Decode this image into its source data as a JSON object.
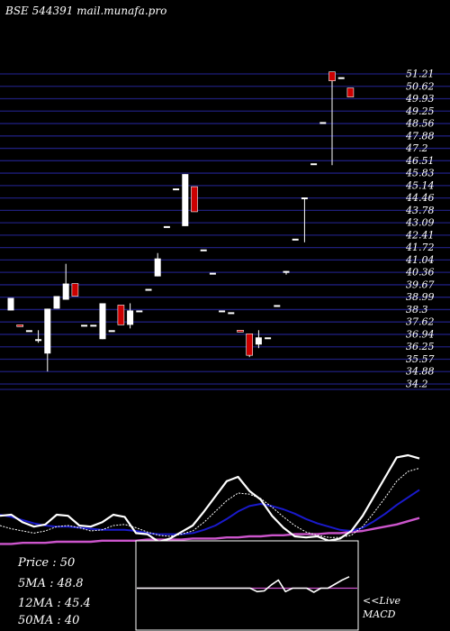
{
  "title": "BSE 544391 mail.munafa.pro",
  "colors": {
    "background": "#000000",
    "grid": "#1e1e7a",
    "up_candle": "#ffffff",
    "down_candle": "#cc0000",
    "price_line": "#ffffff",
    "ma_fast": "#ffffff",
    "ma_mid": "#1a1acc",
    "ma_slow": "#cc55cc",
    "macd_line": "#ffffff",
    "macd_signal": "#cc55cc"
  },
  "stats": {
    "price": "Price   : 50",
    "ma5": "5MA : 48.8",
    "ma12": "12MA : 45.4",
    "ma50": "50MA : 40"
  },
  "macd_labels": {
    "live": "<<Live",
    "macd": "MACD"
  },
  "chart_data": {
    "type": "candlestick",
    "title": "BSE 544391 mail.munafa.pro",
    "y_ticks": [
      "51.21",
      "50.62",
      "49.93",
      "49.25",
      "48.56",
      "47.88",
      "47.2",
      "46.51",
      "45.83",
      "45.14",
      "44.46",
      "43.78",
      "43.09",
      "42.41",
      "41.72",
      "41.04",
      "40.36",
      "39.67",
      "38.99",
      "38.3",
      "37.62",
      "36.94",
      "36.25",
      "35.57",
      "34.88",
      "34.2"
    ],
    "ylim": [
      33.3,
      53.9
    ],
    "candles": [
      {
        "o": 37.6,
        "h": 38.3,
        "l": 37.6,
        "c": 38.3
      },
      {
        "o": 36.8,
        "h": 36.8,
        "l": 36.7,
        "c": 36.7
      },
      {
        "o": 36.5,
        "h": 36.5,
        "l": 36.5,
        "c": 36.5
      },
      {
        "o": 36.0,
        "h": 36.5,
        "l": 35.8,
        "c": 36.0
      },
      {
        "o": 35.2,
        "h": 37.7,
        "l": 34.2,
        "c": 37.7
      },
      {
        "o": 37.7,
        "h": 38.4,
        "l": 37.7,
        "c": 38.4
      },
      {
        "o": 38.2,
        "h": 40.2,
        "l": 38.2,
        "c": 39.1
      },
      {
        "o": 39.1,
        "h": 39.1,
        "l": 38.4,
        "c": 38.4
      },
      {
        "o": 36.8,
        "h": 36.8,
        "l": 36.8,
        "c": 36.8
      },
      {
        "o": 36.8,
        "h": 36.8,
        "l": 36.8,
        "c": 36.8
      },
      {
        "o": 36.0,
        "h": 38.0,
        "l": 36.0,
        "c": 38.0
      },
      {
        "o": 36.5,
        "h": 36.5,
        "l": 36.5,
        "c": 36.5
      },
      {
        "o": 37.9,
        "h": 37.9,
        "l": 36.8,
        "c": 36.8
      },
      {
        "o": 36.8,
        "h": 38.0,
        "l": 36.6,
        "c": 37.6
      },
      {
        "o": 37.6,
        "h": 37.6,
        "l": 37.6,
        "c": 37.6
      },
      {
        "o": 38.8,
        "h": 38.8,
        "l": 38.8,
        "c": 38.8
      },
      {
        "o": 39.5,
        "h": 40.8,
        "l": 39.5,
        "c": 40.5
      },
      {
        "o": 42.3,
        "h": 42.3,
        "l": 42.3,
        "c": 42.3
      },
      {
        "o": 44.4,
        "h": 44.4,
        "l": 44.4,
        "c": 44.4
      },
      {
        "o": 42.3,
        "h": 45.2,
        "l": 42.3,
        "c": 45.2
      },
      {
        "o": 44.5,
        "h": 44.5,
        "l": 43.1,
        "c": 43.1
      },
      {
        "o": 41.0,
        "h": 41.0,
        "l": 41.0,
        "c": 41.0
      },
      {
        "o": 39.7,
        "h": 39.7,
        "l": 39.7,
        "c": 39.7
      },
      {
        "o": 37.6,
        "h": 37.6,
        "l": 37.6,
        "c": 37.6
      },
      {
        "o": 37.5,
        "h": 37.5,
        "l": 37.5,
        "c": 37.5
      },
      {
        "o": 36.5,
        "h": 36.5,
        "l": 36.4,
        "c": 36.4
      },
      {
        "o": 36.3,
        "h": 36.3,
        "l": 35.0,
        "c": 35.1
      },
      {
        "o": 35.7,
        "h": 36.5,
        "l": 35.5,
        "c": 36.1
      },
      {
        "o": 36.1,
        "h": 36.1,
        "l": 36.1,
        "c": 36.1
      },
      {
        "o": 37.9,
        "h": 37.9,
        "l": 37.9,
        "c": 37.9
      },
      {
        "o": 39.8,
        "h": 39.8,
        "l": 39.6,
        "c": 39.8
      },
      {
        "o": 41.6,
        "h": 41.6,
        "l": 41.6,
        "c": 41.6
      },
      {
        "o": 43.9,
        "h": 43.9,
        "l": 41.4,
        "c": 43.9
      },
      {
        "o": 45.8,
        "h": 45.8,
        "l": 45.8,
        "c": 45.8
      },
      {
        "o": 48.1,
        "h": 48.1,
        "l": 48.1,
        "c": 48.1
      },
      {
        "o": 50.9,
        "h": 50.9,
        "l": 45.7,
        "c": 50.4
      },
      {
        "o": 50.6,
        "h": 50.6,
        "l": 50.6,
        "c": 50.6
      },
      {
        "o": 50.0,
        "h": 50.0,
        "l": 49.5,
        "c": 49.5
      }
    ],
    "moving_averages": {
      "ylim": [
        0,
        1
      ],
      "price_line": [
        0.44,
        0.45,
        0.38,
        0.34,
        0.36,
        0.45,
        0.44,
        0.35,
        0.34,
        0.38,
        0.45,
        0.43,
        0.28,
        0.27,
        0.2,
        0.23,
        0.29,
        0.35,
        0.48,
        0.62,
        0.76,
        0.8,
        0.67,
        0.59,
        0.44,
        0.33,
        0.25,
        0.24,
        0.25,
        0.21,
        0.23,
        0.3,
        0.44,
        0.62,
        0.8,
        0.98,
        1.0,
        0.97
      ],
      "ma_fast": [
        0.35,
        0.32,
        0.3,
        0.28,
        0.3,
        0.34,
        0.35,
        0.33,
        0.3,
        0.31,
        0.35,
        0.36,
        0.33,
        0.29,
        0.26,
        0.25,
        0.27,
        0.3,
        0.38,
        0.48,
        0.58,
        0.65,
        0.64,
        0.6,
        0.52,
        0.43,
        0.35,
        0.29,
        0.26,
        0.24,
        0.24,
        0.26,
        0.34,
        0.47,
        0.61,
        0.76,
        0.85,
        0.88
      ],
      "ma_mid": [
        0.45,
        0.43,
        0.4,
        0.37,
        0.35,
        0.34,
        0.34,
        0.33,
        0.32,
        0.31,
        0.31,
        0.31,
        0.3,
        0.28,
        0.27,
        0.27,
        0.27,
        0.28,
        0.31,
        0.35,
        0.41,
        0.48,
        0.53,
        0.55,
        0.53,
        0.5,
        0.46,
        0.41,
        0.37,
        0.34,
        0.31,
        0.3,
        0.33,
        0.39,
        0.46,
        0.54,
        0.61,
        0.68
      ],
      "ma_slow": [
        0.18,
        0.18,
        0.19,
        0.19,
        0.19,
        0.2,
        0.2,
        0.2,
        0.2,
        0.21,
        0.21,
        0.21,
        0.21,
        0.22,
        0.22,
        0.22,
        0.22,
        0.23,
        0.23,
        0.23,
        0.24,
        0.24,
        0.25,
        0.25,
        0.26,
        0.26,
        0.27,
        0.27,
        0.27,
        0.28,
        0.28,
        0.29,
        0.3,
        0.32,
        0.34,
        0.36,
        0.39,
        0.42
      ]
    },
    "macd": {
      "ylim": [
        0,
        1
      ],
      "line": [
        0.5,
        0.5,
        0.5,
        0.5,
        0.5,
        0.5,
        0.5,
        0.5,
        0.5,
        0.5,
        0.5,
        0.5,
        0.5,
        0.5,
        0.5,
        0.5,
        0.5,
        0.45,
        0.46,
        0.55,
        0.62,
        0.45,
        0.5,
        0.5,
        0.5,
        0.44,
        0.5,
        0.5,
        0.56,
        0.62,
        0.67
      ],
      "signal": [
        0.5,
        0.5,
        0.5,
        0.5,
        0.5,
        0.5,
        0.5,
        0.5,
        0.5,
        0.5,
        0.5,
        0.5,
        0.5,
        0.5,
        0.5,
        0.5,
        0.5,
        0.5,
        0.5,
        0.5,
        0.5,
        0.5,
        0.5,
        0.5,
        0.5,
        0.5,
        0.5,
        0.5,
        0.5,
        0.5,
        0.5
      ]
    }
  }
}
